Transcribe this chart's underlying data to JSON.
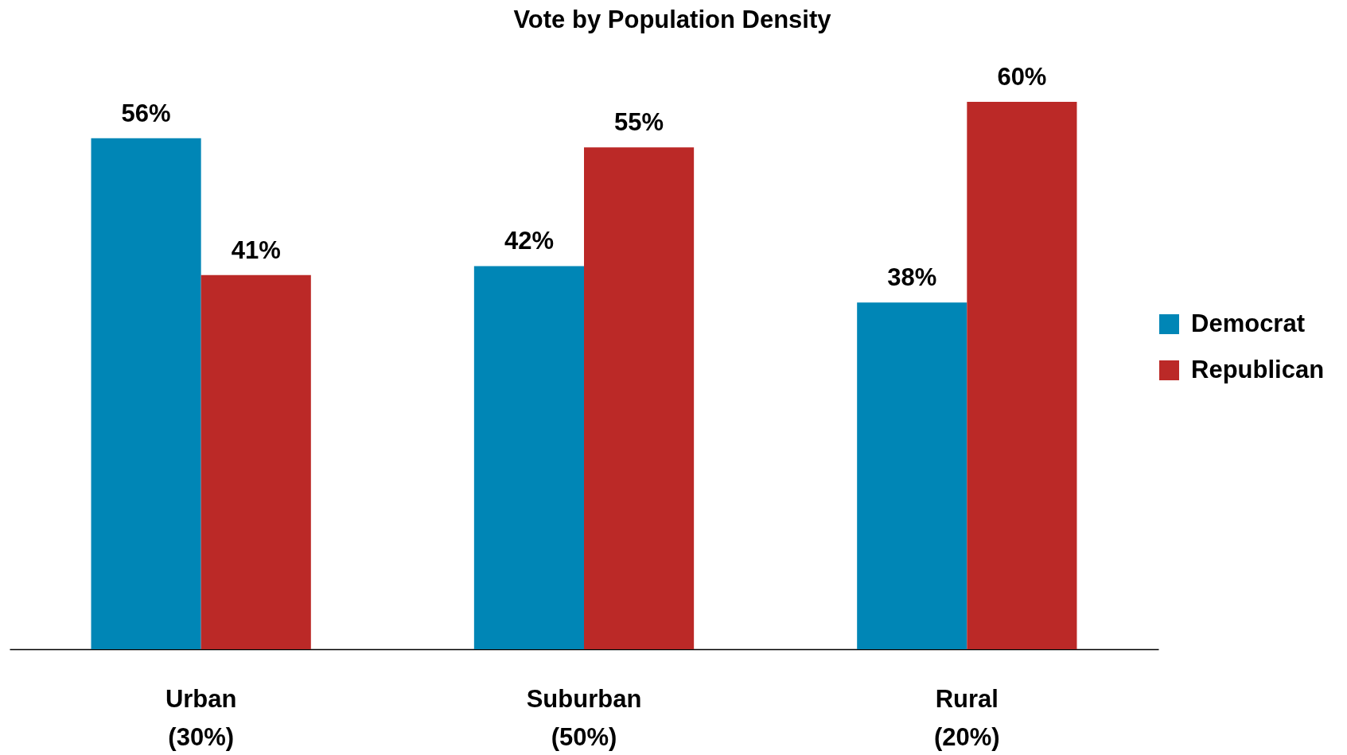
{
  "chart_data": {
    "type": "bar",
    "title": "Vote by Population Density",
    "categories": [
      "Urban\n(30%)",
      "Suburban\n(50%)",
      "Rural\n(20%)"
    ],
    "series": [
      {
        "name": "Democrat",
        "color": "#0086b6",
        "values": [
          56,
          42,
          38
        ],
        "value_labels": [
          "56%",
          "42%",
          "38%"
        ]
      },
      {
        "name": "Republican",
        "color": "#bb2927",
        "values": [
          41,
          55,
          60
        ],
        "value_labels": [
          "41%",
          "55%",
          "60%"
        ]
      }
    ],
    "legend": "right",
    "tick_labels": "x"
  }
}
